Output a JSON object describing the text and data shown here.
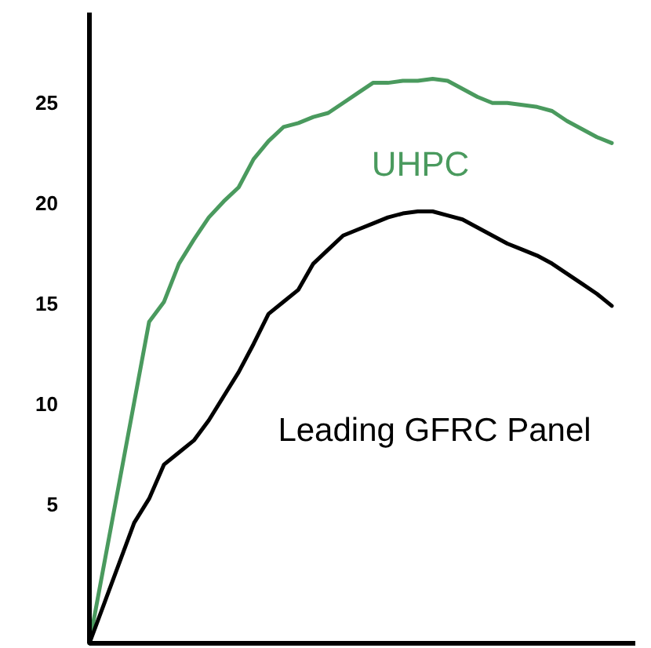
{
  "chart_data": {
    "type": "line",
    "categories": [
      null,
      null,
      null,
      null,
      null,
      null,
      null,
      null,
      null,
      null,
      null,
      null,
      null,
      null,
      null,
      null,
      null,
      null,
      null,
      null,
      null,
      null,
      null,
      null,
      null,
      null,
      null,
      null,
      null,
      null,
      null,
      null,
      null,
      null,
      null,
      null
    ],
    "ylim": [
      -1.9,
      29.5
    ],
    "yticks": [
      5,
      10,
      15,
      20,
      25
    ],
    "grid": false,
    "marker": "none",
    "line_style": "solid",
    "series": [
      {
        "name": "UHPC",
        "color": "#4a9a5e",
        "values": [
          -1.9,
          2.1,
          6.1,
          10.1,
          14.1,
          15.1,
          17.0,
          18.2,
          19.3,
          20.1,
          20.8,
          22.2,
          23.1,
          23.8,
          24.0,
          24.3,
          24.5,
          25.0,
          25.5,
          26.0,
          26.0,
          26.1,
          26.1,
          26.2,
          26.1,
          25.7,
          25.3,
          25.0,
          25.0,
          24.9,
          24.8,
          24.6,
          24.1,
          23.7,
          23.3,
          23.0
        ]
      },
      {
        "name": "Leading GFRC Panel",
        "color": "#000000",
        "values": [
          -1.9,
          0.1,
          2.1,
          4.1,
          5.3,
          7.0,
          7.6,
          8.2,
          9.2,
          10.4,
          11.6,
          13.0,
          14.5,
          15.1,
          15.7,
          17.0,
          17.7,
          18.4,
          18.7,
          19.0,
          19.3,
          19.5,
          19.6,
          19.6,
          19.4,
          19.2,
          18.8,
          18.4,
          18.0,
          17.7,
          17.4,
          17.0,
          16.5,
          16.0,
          15.5,
          14.9
        ]
      }
    ]
  }
}
